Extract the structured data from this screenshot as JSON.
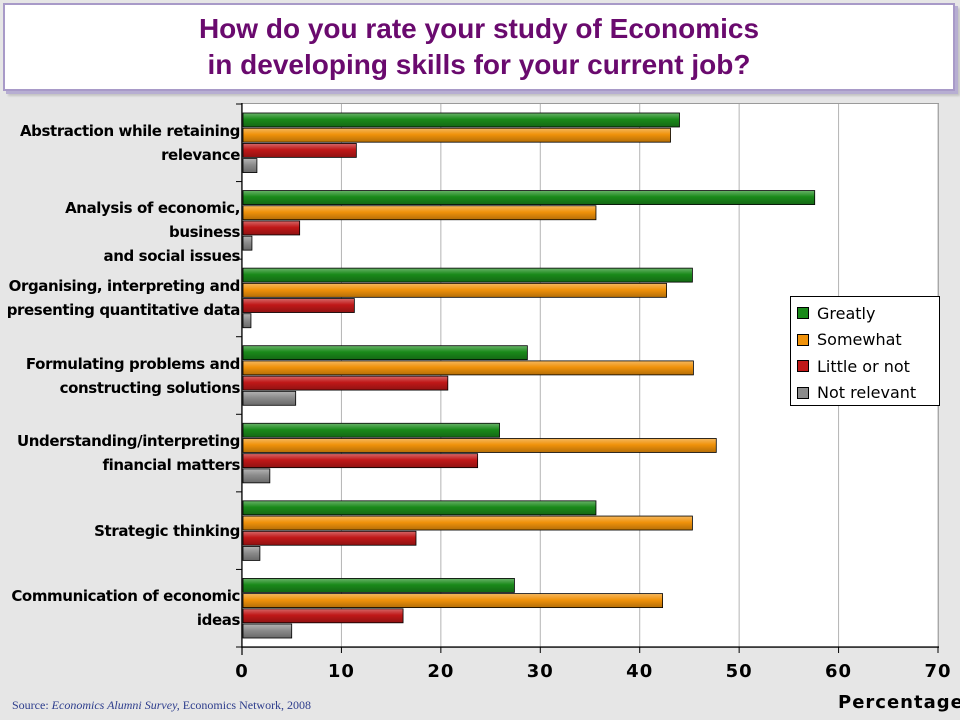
{
  "title": {
    "line1": "How do you rate your study of Economics",
    "line2": "in developing skills for your current job?"
  },
  "source": {
    "prefix": "Source: ",
    "survey": "Economics Alumni Survey,",
    "suffix": " Economics Network, 2008"
  },
  "chart_data": {
    "type": "bar",
    "orientation": "horizontal",
    "title": "How do you rate your study of Economics in developing skills for your current job?",
    "xlabel": "Percentage",
    "ylabel": "",
    "xlim": [
      0,
      70
    ],
    "xticks": [
      0,
      10,
      20,
      30,
      40,
      50,
      60,
      70
    ],
    "grid": true,
    "legend_position": "right",
    "categories": [
      [
        "Abstraction while retaining",
        "relevance"
      ],
      [
        "Analysis of economic, business",
        "and social issues"
      ],
      [
        "Organising, interpreting and",
        "presenting quantitative data"
      ],
      [
        "Formulating problems and",
        "constructing solutions"
      ],
      [
        "Understanding/interpreting",
        "financial matters"
      ],
      [
        "Strategic thinking"
      ],
      [
        "Communication of economic",
        "ideas"
      ]
    ],
    "series": [
      {
        "name": "Greatly",
        "color": "#1a8a1a",
        "values": [
          44,
          57.6,
          45.3,
          28.7,
          25.9,
          35.6,
          27.4
        ]
      },
      {
        "name": "Somewhat",
        "color": "#f0920a",
        "values": [
          43.1,
          35.6,
          42.7,
          45.4,
          47.7,
          45.3,
          42.3
        ]
      },
      {
        "name": "Little or not",
        "color": "#c01818",
        "values": [
          11.5,
          5.8,
          11.3,
          20.7,
          23.7,
          17.5,
          16.2
        ]
      },
      {
        "name": "Not relevant",
        "color": "#8c8c8c",
        "values": [
          1.5,
          1.0,
          0.9,
          5.4,
          2.8,
          1.8,
          5.0
        ]
      }
    ]
  }
}
